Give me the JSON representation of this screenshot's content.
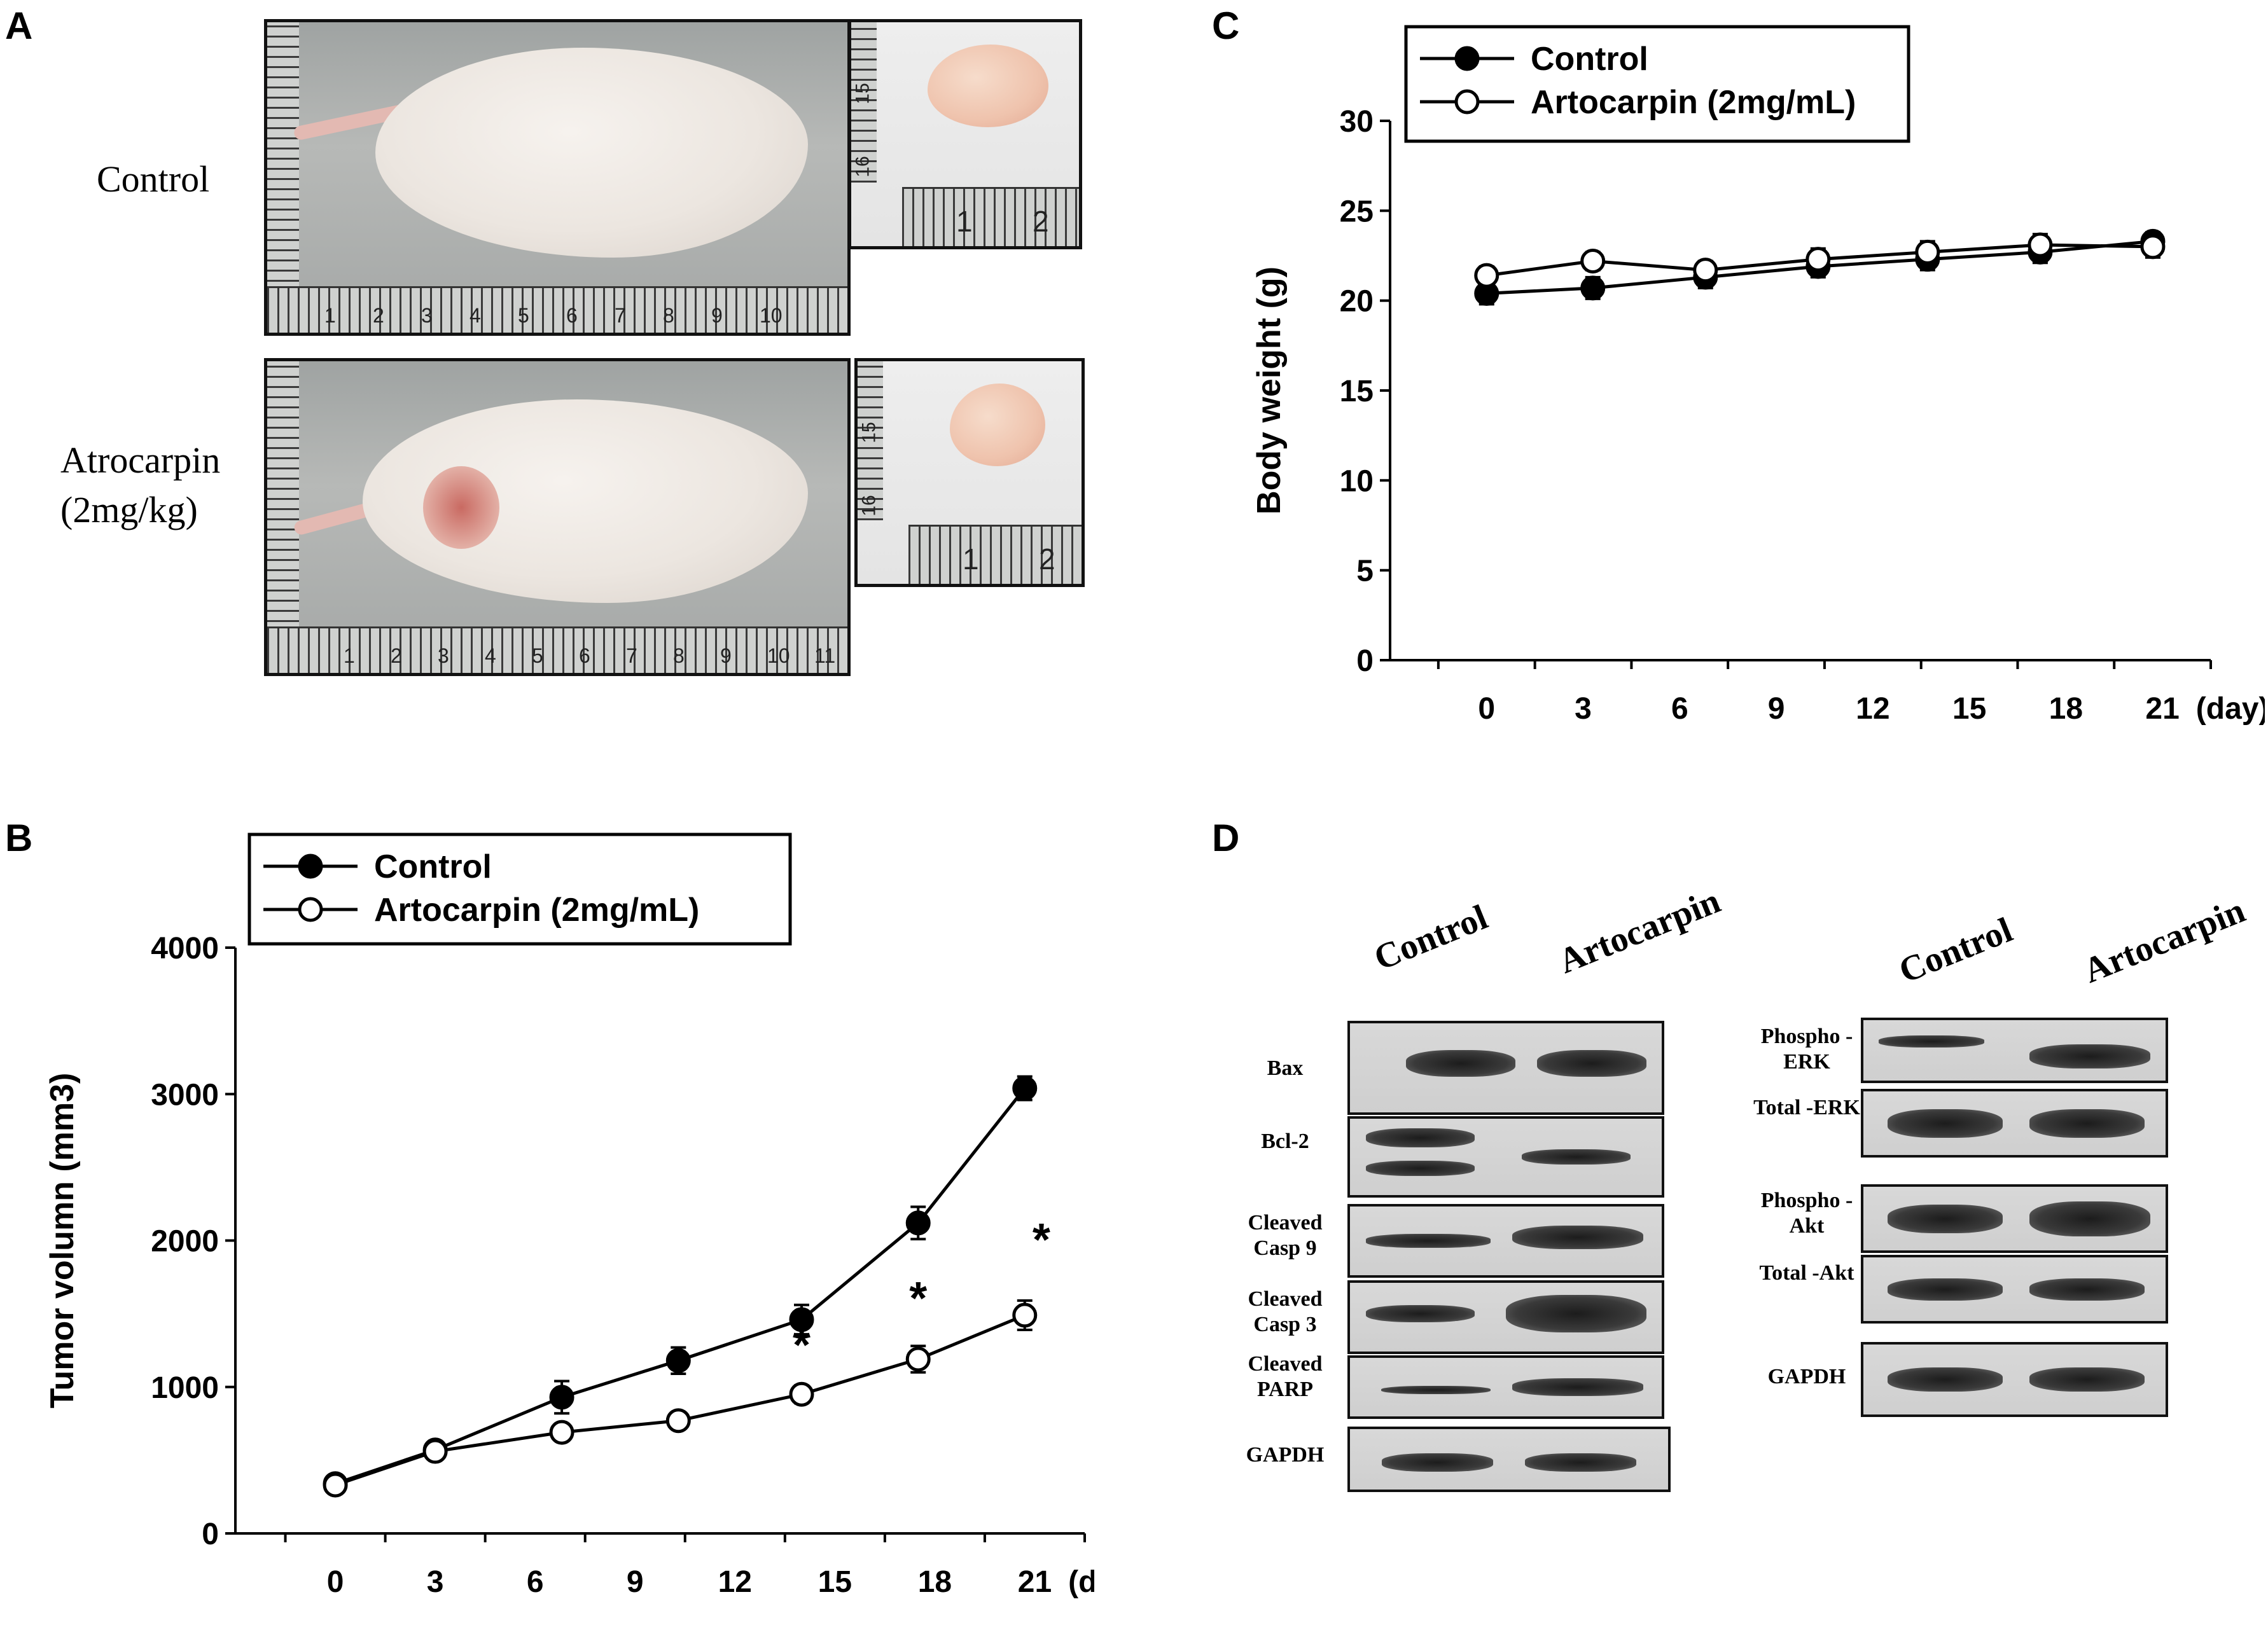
{
  "panels": {
    "a": {
      "letter": "A",
      "row_labels": {
        "control": "Control",
        "treated_line1": "Atrocarpin",
        "treated_line2": "(2mg/kg)"
      },
      "ruler_numbers_top": [
        "1",
        "2",
        "3",
        "4",
        "5",
        "6",
        "7",
        "8",
        "9",
        "10"
      ],
      "ruler_numbers_bottom": [
        "1",
        "2",
        "3",
        "4",
        "5",
        "6",
        "7",
        "8",
        "9",
        "10",
        "11"
      ],
      "small_ruler_numbers": [
        "1",
        "2"
      ],
      "small_ruler_side": [
        "15",
        "16"
      ]
    },
    "b": {
      "letter": "B"
    },
    "c": {
      "letter": "C"
    },
    "d": {
      "letter": "D",
      "lanes_left": [
        "Control",
        "Artocarpin"
      ],
      "lanes_right": [
        "Control",
        "Artocarpin"
      ],
      "left_blots": [
        {
          "label": "Bax"
        },
        {
          "label": "Bcl-2"
        },
        {
          "label": "Cleaved Casp 9"
        },
        {
          "label": "Cleaved Casp 3"
        },
        {
          "label": "Cleaved PARP"
        },
        {
          "label": "GAPDH"
        }
      ],
      "right_blots": [
        {
          "label": "Phospho -ERK"
        },
        {
          "label": "Total -ERK"
        },
        {
          "label": "Phospho -Akt"
        },
        {
          "label": "Total -Akt"
        },
        {
          "label": "GAPDH"
        }
      ]
    }
  },
  "chart_data": [
    {
      "type": "line",
      "panel": "B",
      "title": "",
      "xlabel": "(day)",
      "ylabel": "Tumor volumn (mm3)",
      "x_ticks": [
        0,
        3,
        6,
        9,
        12,
        15,
        18,
        21
      ],
      "y_ticks": [
        0,
        1000,
        2000,
        3000,
        4000
      ],
      "xlim": [
        -3,
        22.5
      ],
      "ylim": [
        0,
        4000
      ],
      "legend": [
        "Control",
        "Artocarpin (2mg/mL)"
      ],
      "series": [
        {
          "name": "Control",
          "marker": "filled",
          "x": [
            0,
            3,
            6.8,
            10.3,
            14,
            17.5,
            20.7
          ],
          "y": [
            340,
            570,
            930,
            1180,
            1460,
            2120,
            3040
          ],
          "err": [
            40,
            40,
            110,
            90,
            100,
            110,
            80
          ]
        },
        {
          "name": "Artocarpin (2mg/mL)",
          "marker": "open",
          "x": [
            0,
            3,
            6.8,
            10.3,
            14,
            17.5,
            20.7
          ],
          "y": [
            330,
            560,
            690,
            770,
            950,
            1190,
            1490
          ],
          "err": [
            40,
            40,
            40,
            40,
            60,
            90,
            100
          ]
        }
      ],
      "annotations": [
        {
          "text": "*",
          "x": 14,
          "y": 1300
        },
        {
          "text": "*",
          "x": 17.5,
          "y": 1620
        },
        {
          "text": "*",
          "x": 21.2,
          "y": 2020
        }
      ]
    },
    {
      "type": "line",
      "panel": "C",
      "title": "",
      "xlabel": "(day)",
      "ylabel": "Body weight (g)",
      "x_ticks": [
        0,
        3,
        6,
        9,
        12,
        15,
        18,
        21
      ],
      "y_ticks": [
        0,
        5,
        10,
        15,
        20,
        25,
        30
      ],
      "xlim": [
        -3,
        22.5
      ],
      "ylim": [
        0,
        30
      ],
      "legend": [
        "Control",
        "Artocarpin (2mg/mL)"
      ],
      "series": [
        {
          "name": "Control",
          "marker": "filled",
          "x": [
            0,
            3.3,
            6.8,
            10.3,
            13.7,
            17.2,
            20.7
          ],
          "y": [
            20.4,
            20.7,
            21.3,
            21.9,
            22.3,
            22.7,
            23.3
          ],
          "err": [
            0.6,
            0.6,
            0.6,
            0.6,
            0.6,
            0.6,
            0.5
          ]
        },
        {
          "name": "Artocarpin (2mg/mL)",
          "marker": "open",
          "x": [
            0,
            3.3,
            6.8,
            10.3,
            13.7,
            17.2,
            20.7
          ],
          "y": [
            21.4,
            22.2,
            21.7,
            22.3,
            22.7,
            23.1,
            23.0
          ],
          "err": [
            0.5,
            0.5,
            0.5,
            0.6,
            0.6,
            0.6,
            0.6
          ]
        }
      ]
    }
  ]
}
